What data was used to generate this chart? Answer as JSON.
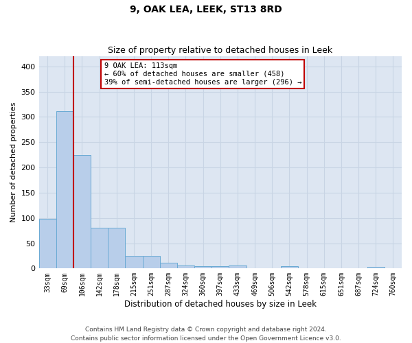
{
  "title": "9, OAK LEA, LEEK, ST13 8RD",
  "subtitle": "Size of property relative to detached houses in Leek",
  "xlabel": "Distribution of detached houses by size in Leek",
  "ylabel": "Number of detached properties",
  "footer_line1": "Contains HM Land Registry data © Crown copyright and database right 2024.",
  "footer_line2": "Contains public sector information licensed under the Open Government Licence v3.0.",
  "categories": [
    "33sqm",
    "69sqm",
    "106sqm",
    "142sqm",
    "178sqm",
    "215sqm",
    "251sqm",
    "287sqm",
    "324sqm",
    "360sqm",
    "397sqm",
    "433sqm",
    "469sqm",
    "506sqm",
    "542sqm",
    "578sqm",
    "615sqm",
    "651sqm",
    "687sqm",
    "724sqm",
    "760sqm"
  ],
  "values": [
    98,
    312,
    224,
    80,
    80,
    25,
    25,
    11,
    6,
    4,
    4,
    6,
    0,
    0,
    5,
    0,
    0,
    0,
    0,
    3,
    0
  ],
  "bar_color": "#b8ceea",
  "bar_edge_color": "#6aaad4",
  "bar_edge_width": 0.7,
  "vline_idx": 2,
  "vline_color": "#c00000",
  "annotation_line1": "9 OAK LEA: 113sqm",
  "annotation_line2": "← 60% of detached houses are smaller (458)",
  "annotation_line3": "39% of semi-detached houses are larger (296) →",
  "annotation_box_color": "#ffffff",
  "annotation_box_edge": "#c00000",
  "ylim_max": 420,
  "yticks": [
    0,
    50,
    100,
    150,
    200,
    250,
    300,
    350,
    400
  ],
  "grid_color": "#c8d4e4",
  "plot_bg_color": "#dde6f2",
  "title_fontsize": 10,
  "subtitle_fontsize": 9,
  "tick_fontsize": 7,
  "ylabel_fontsize": 8,
  "xlabel_fontsize": 8.5,
  "footer_fontsize": 6.5
}
